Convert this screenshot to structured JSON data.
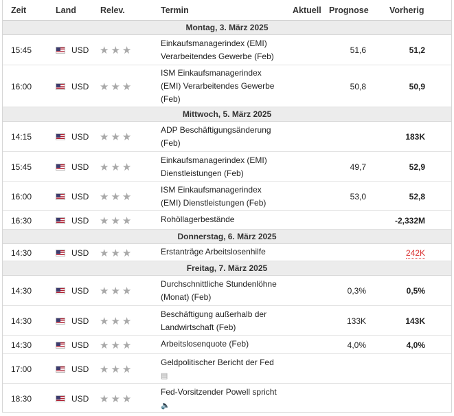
{
  "headers": {
    "zeit": "Zeit",
    "land": "Land",
    "relev": "Relev.",
    "termin": "Termin",
    "aktuell": "Aktuell",
    "prognose": "Prognose",
    "vorherig": "Vorherig"
  },
  "days": [
    "Montag, 3. März 2025",
    "Mittwoch, 5. März 2025",
    "Donnerstag, 6. März 2025",
    "Freitag, 7. März 2025"
  ],
  "country": "USD",
  "stars": "★★★",
  "events": [
    {
      "time": "15:45",
      "line1": "Einkaufsmanagerindex (EMI)",
      "line2": "Verarbeitendes Gewerbe (Feb)",
      "line3": "",
      "prognose": "51,6",
      "vorherig": "51,2"
    },
    {
      "time": "16:00",
      "line1": "ISM Einkaufsmanagerindex",
      "line2": "(EMI) Verarbeitendes Gewerbe",
      "line3": "(Feb)",
      "prognose": "50,8",
      "vorherig": "50,9"
    },
    {
      "time": "14:15",
      "line1": "ADP Beschäftigungsänderung",
      "line2": "(Feb)",
      "line3": "",
      "prognose": "",
      "vorherig": "183K"
    },
    {
      "time": "15:45",
      "line1": "Einkaufsmanagerindex (EMI)",
      "line2": "Dienstleistungen (Feb)",
      "line3": "",
      "prognose": "49,7",
      "vorherig": "52,9"
    },
    {
      "time": "16:00",
      "line1": "ISM Einkaufsmanagerindex",
      "line2": "(EMI) Dienstleistungen (Feb)",
      "line3": "",
      "prognose": "53,0",
      "vorherig": "52,8"
    },
    {
      "time": "16:30",
      "line1": "Rohöllagerbestände",
      "line2": "",
      "line3": "",
      "prognose": "",
      "vorherig": "-2,332M"
    },
    {
      "time": "14:30",
      "line1": "Erstanträge Arbeitslosenhilfe",
      "line2": "",
      "line3": "",
      "prognose": "",
      "vorherig": "242K"
    },
    {
      "time": "14:30",
      "line1": "Durchschnittliche Stundenlöhne",
      "line2": "(Monat) (Feb)",
      "line3": "",
      "prognose": "0,3%",
      "vorherig": "0,5%"
    },
    {
      "time": "14:30",
      "line1": "Beschäftigung außerhalb der",
      "line2": "Landwirtschaft (Feb)",
      "line3": "",
      "prognose": "133K",
      "vorherig": "143K"
    },
    {
      "time": "14:30",
      "line1": "Arbeitslosenquote (Feb)",
      "line2": "",
      "line3": "",
      "prognose": "4,0%",
      "vorherig": "4,0%"
    },
    {
      "time": "17:00",
      "line1": "Geldpolitischer Bericht der Fed",
      "line2": "",
      "line3": "",
      "prognose": "",
      "vorherig": ""
    },
    {
      "time": "18:30",
      "line1": "Fed-Vorsitzender Powell spricht",
      "line2": "",
      "line3": "",
      "prognose": "",
      "vorherig": ""
    }
  ]
}
